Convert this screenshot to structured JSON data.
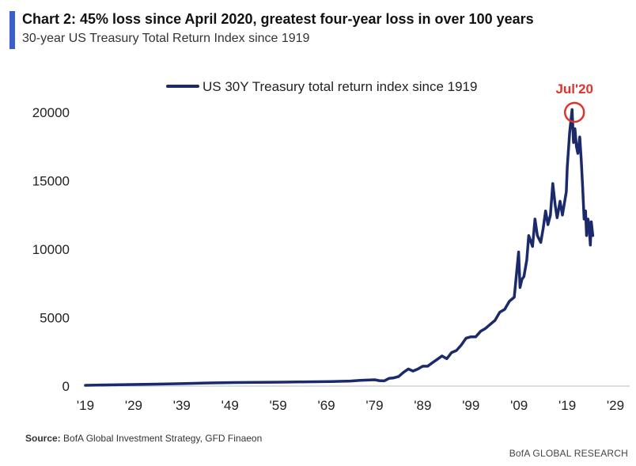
{
  "header": {
    "title": "Chart 2: 45% loss since April 2020, greatest four-year loss in over 100 years",
    "subtitle": "30-year US Treasury Total Return Index since 1919",
    "accent_color": "#3a5fcd"
  },
  "chart_data": {
    "type": "line",
    "title": "Chart 2: 45% loss since April 2020, greatest four-year loss in over 100 years",
    "subtitle": "30-year US Treasury Total Return Index since 1919",
    "xlabel": "",
    "ylabel": "",
    "xlim": [
      1919,
      2029
    ],
    "ylim": [
      0,
      20000
    ],
    "x_ticks": [
      1919,
      1929,
      1939,
      1949,
      1959,
      1969,
      1979,
      1989,
      1999,
      2009,
      2019,
      2029
    ],
    "x_tick_labels": [
      "'19",
      "'29",
      "'39",
      "'49",
      "'59",
      "'69",
      "'79",
      "'89",
      "'99",
      "'09",
      "'19",
      "'29"
    ],
    "y_ticks": [
      0,
      5000,
      10000,
      15000,
      20000
    ],
    "y_tick_labels": [
      "0",
      "5000",
      "10000",
      "15000",
      "20000"
    ],
    "grid": false,
    "legend_position": "top-center",
    "series": [
      {
        "name": "US 30Y Treasury total return index since 1919",
        "color": "#1b2a6b",
        "x": [
          1919,
          1925,
          1930,
          1935,
          1940,
          1945,
          1950,
          1955,
          1960,
          1965,
          1970,
          1974,
          1976,
          1979,
          1980,
          1981,
          1982,
          1983,
          1984,
          1985,
          1986,
          1987,
          1988,
          1989,
          1990,
          1991,
          1992,
          1993,
          1994,
          1995,
          1996,
          1997,
          1998,
          1999,
          2000,
          2001,
          2002,
          2003,
          2004,
          2005,
          2006,
          2007,
          2008,
          2008.9,
          2009.2,
          2009.6,
          2010,
          2010.6,
          2011,
          2011.8,
          2012.3,
          2012.8,
          2013.5,
          2014,
          2014.5,
          2015,
          2015.5,
          2016,
          2016.5,
          2016.9,
          2017.5,
          2018,
          2018.8,
          2019,
          2019.5,
          2020,
          2020.3,
          2020.6,
          2020.9,
          2021.2,
          2021.6,
          2021.9,
          2022.2,
          2022.5,
          2022.8,
          2023,
          2023.3,
          2023.5,
          2023.8,
          2024,
          2024.3
        ],
        "values": [
          60,
          90,
          120,
          150,
          190,
          230,
          260,
          280,
          290,
          310,
          330,
          370,
          420,
          460,
          400,
          380,
          560,
          600,
          700,
          1000,
          1250,
          1100,
          1250,
          1450,
          1450,
          1700,
          1950,
          2200,
          2000,
          2450,
          2600,
          3000,
          3500,
          3600,
          3600,
          4000,
          4200,
          4500,
          4800,
          5400,
          5600,
          6200,
          6500,
          9800,
          7200,
          7800,
          8000,
          9200,
          11000,
          10200,
          12200,
          11000,
          10500,
          11500,
          12800,
          11800,
          12500,
          14800,
          13200,
          12300,
          13500,
          12500,
          14200,
          16000,
          18500,
          20200,
          17800,
          18800,
          17500,
          17000,
          18200,
          16500,
          14500,
          12200,
          12800,
          11000,
          12200,
          11800,
          10300,
          12000,
          11000
        ]
      }
    ],
    "annotations": [
      {
        "text": "Jul'20",
        "x": 2020.5,
        "y": 20000,
        "color": "#e0332c"
      }
    ]
  },
  "footer": {
    "source_label": "Source:",
    "source_text": "BofA Global Investment Strategy, GFD Finaeon",
    "brand": "BofA GLOBAL RESEARCH"
  }
}
